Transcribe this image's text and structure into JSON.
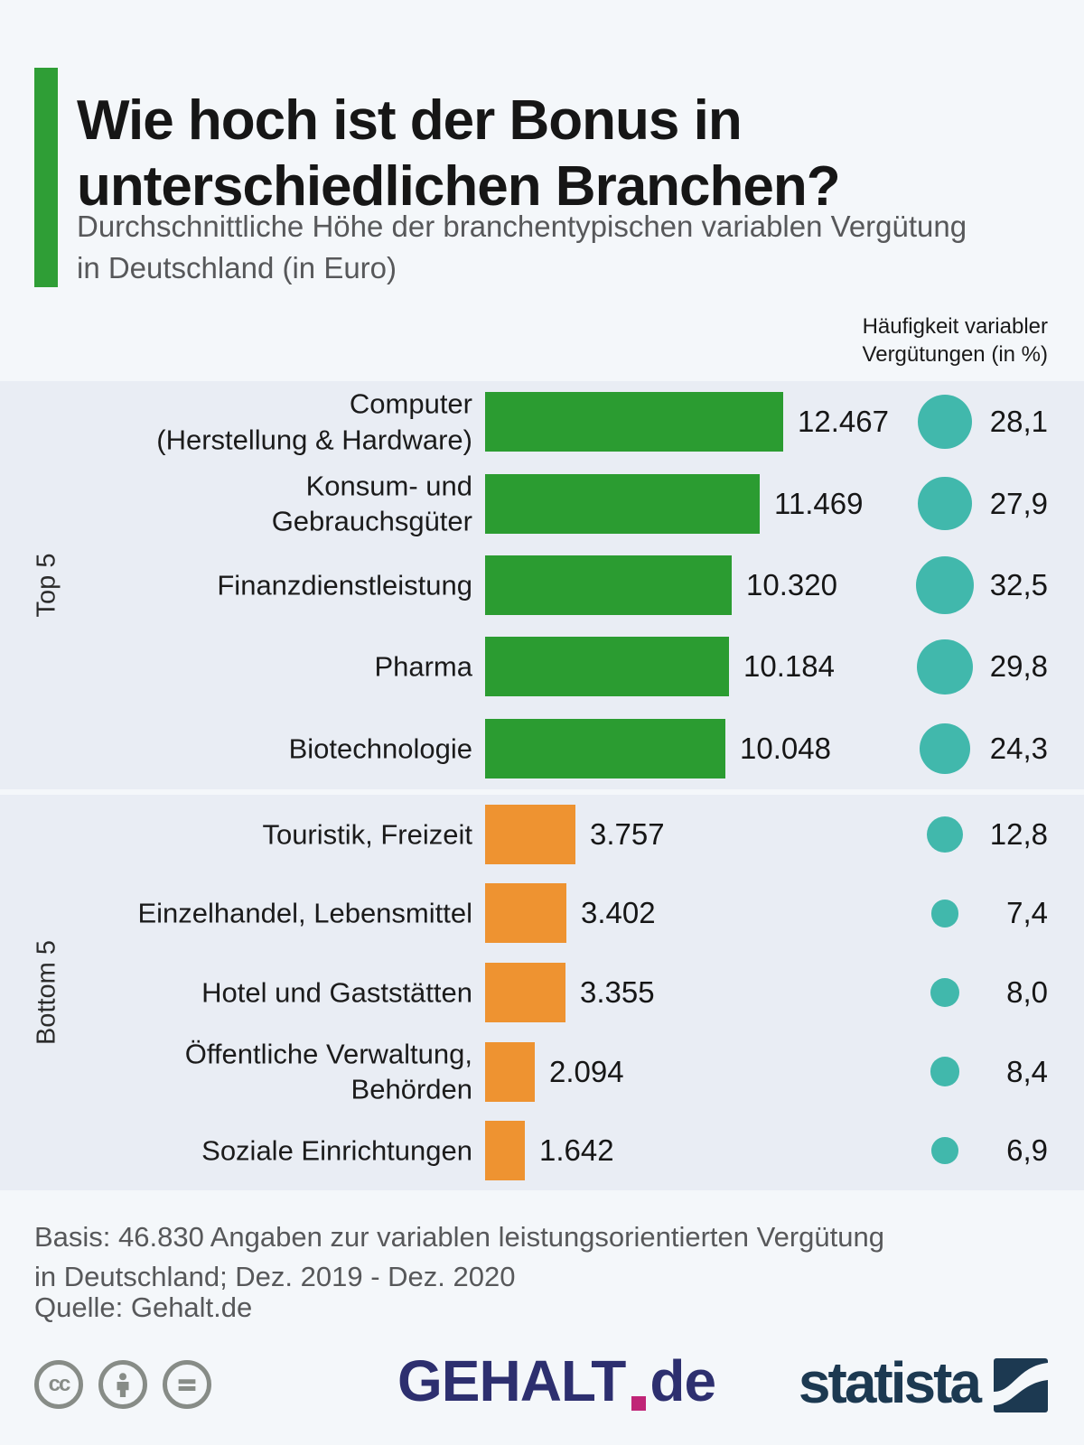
{
  "header": {
    "title": "Wie hoch ist der Bonus in unterschiedlichen Branchen?",
    "subtitle": "Durchschnittliche Höhe der branchentypischen variablen Vergütung in Deutschland (in Euro)",
    "accent_color": "#2f9e36"
  },
  "legend_note": "Häufigkeit variabler Vergütungen (in %)",
  "chart_data": {
    "type": "bar",
    "orientation": "horizontal",
    "value_unit": "Euro",
    "bubble_unit": "percent",
    "bubble_color": "#41b8ac",
    "groups": [
      {
        "name": "Top 5",
        "bar_color": "#2b9c31",
        "rows": [
          {
            "label_lines": [
              "Computer",
              "(Herstellung & Hardware)"
            ],
            "value": 12467,
            "value_label": "12.467",
            "pct": 28.1,
            "pct_label": "28,1"
          },
          {
            "label_lines": [
              "Konsum- und",
              "Gebrauchsgüter"
            ],
            "value": 11469,
            "value_label": "11.469",
            "pct": 27.9,
            "pct_label": "27,9"
          },
          {
            "label_lines": [
              "Finanzdienstleistung"
            ],
            "value": 10320,
            "value_label": "10.320",
            "pct": 32.5,
            "pct_label": "32,5"
          },
          {
            "label_lines": [
              "Pharma"
            ],
            "value": 10184,
            "value_label": "10.184",
            "pct": 29.8,
            "pct_label": "29,8"
          },
          {
            "label_lines": [
              "Biotechnologie"
            ],
            "value": 10048,
            "value_label": "10.048",
            "pct": 24.3,
            "pct_label": "24,3"
          }
        ]
      },
      {
        "name": "Bottom 5",
        "bar_color": "#ee9331",
        "rows": [
          {
            "label_lines": [
              "Touristik, Freizeit"
            ],
            "value": 3757,
            "value_label": "3.757",
            "pct": 12.8,
            "pct_label": "12,8"
          },
          {
            "label_lines": [
              "Einzelhandel, Lebensmittel"
            ],
            "value": 3402,
            "value_label": "3.402",
            "pct": 7.4,
            "pct_label": "7,4"
          },
          {
            "label_lines": [
              "Hotel und Gaststätten"
            ],
            "value": 3355,
            "value_label": "3.355",
            "pct": 8.0,
            "pct_label": "8,0"
          },
          {
            "label_lines": [
              "Öffentliche Verwaltung,",
              "Behörden"
            ],
            "value": 2094,
            "value_label": "2.094",
            "pct": 8.4,
            "pct_label": "8,4"
          },
          {
            "label_lines": [
              "Soziale Einrichtungen"
            ],
            "value": 1642,
            "value_label": "1.642",
            "pct": 6.9,
            "pct_label": "6,9"
          }
        ]
      }
    ]
  },
  "footer": {
    "basis_lines": [
      "Basis: 46.830 Angaben zur variablen leistungsorientierten Vergütung",
      "in Deutschland;  Dez. 2019 - Dez. 2020"
    ],
    "source": "Quelle: Gehalt.de",
    "license": {
      "cc_label": "cc"
    },
    "gehalt_logo": {
      "text": "GEHALT",
      "suffix": "de",
      "color": "#2d2f6f",
      "dot_color": "#c02577"
    },
    "statista_logo": {
      "text": "statista",
      "color": "#1c3951"
    }
  }
}
